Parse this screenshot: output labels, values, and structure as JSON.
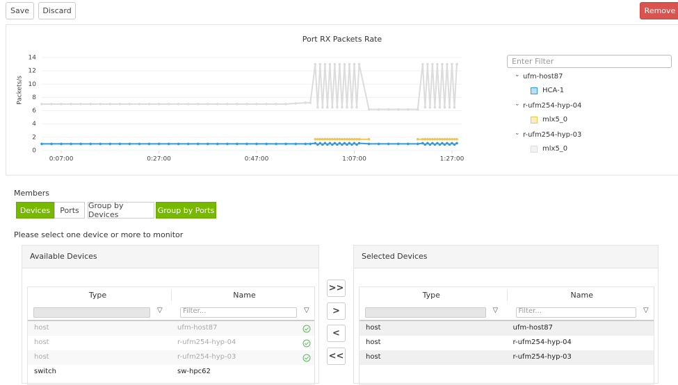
{
  "toolbar": {
    "save": "Save",
    "discard": "Discard",
    "remove": "Remove"
  },
  "chart_data": {
    "type": "line",
    "title": "Port RX Packets Rate",
    "y_label": "Packets/s",
    "x": [
      3,
      5,
      7,
      9,
      11,
      13,
      15,
      17,
      19,
      21,
      23,
      25,
      27,
      29,
      31,
      33,
      35,
      37,
      39,
      41,
      43,
      45,
      47,
      49,
      51,
      53,
      55,
      57,
      58,
      59,
      59.5,
      60,
      60.5,
      61,
      61.5,
      62,
      62.5,
      63,
      63.5,
      64,
      64.5,
      65,
      65.5,
      66,
      66.5,
      67,
      67.5,
      68,
      70,
      72,
      74,
      76,
      78,
      80,
      81,
      81.5,
      82,
      82.5,
      83,
      83.5,
      84,
      84.5,
      85,
      85.5,
      86,
      86.5,
      87,
      87.5,
      88
    ],
    "series": [
      {
        "name": "mlx5_0",
        "color": "#dcdcdc",
        "values": [
          7,
          7,
          7,
          7,
          7,
          7,
          7,
          7,
          7,
          7,
          7,
          7,
          7,
          7,
          7,
          7,
          7,
          7,
          7,
          7,
          7,
          7,
          7,
          7,
          7,
          7,
          7.1,
          7.2,
          7.2,
          13,
          6.5,
          13,
          6.5,
          13,
          6.5,
          13,
          6.5,
          13,
          6.5,
          13,
          6.5,
          13,
          6.5,
          13,
          6.5,
          13,
          6.5,
          13,
          6.2,
          6.2,
          6.2,
          6.2,
          6.2,
          6.2,
          13,
          6.5,
          13,
          6.5,
          13,
          6.5,
          13,
          6.5,
          13,
          6.5,
          13,
          6.5,
          13,
          6.5,
          13
        ]
      },
      {
        "name": "mlx5_0",
        "color": "#f2c744",
        "values": [
          null,
          null,
          null,
          null,
          null,
          null,
          null,
          null,
          null,
          null,
          null,
          null,
          null,
          null,
          null,
          null,
          null,
          null,
          null,
          null,
          null,
          null,
          null,
          null,
          null,
          null,
          null,
          null,
          null,
          1.7,
          1.7,
          1.7,
          1.7,
          1.7,
          1.7,
          1.7,
          1.7,
          1.7,
          1.7,
          1.7,
          1.7,
          1.7,
          1.7,
          1.7,
          1.7,
          1.7,
          1.7,
          1.7,
          1.7,
          null,
          null,
          null,
          null,
          1.7,
          1.7,
          1.7,
          1.7,
          1.7,
          1.7,
          1.7,
          1.7,
          1.7,
          1.7,
          1.7,
          1.7,
          1.7,
          1.7,
          1.7,
          1.7
        ]
      },
      {
        "name": "HCA-1",
        "color": "#2f9be0",
        "values": [
          1,
          1,
          1,
          1,
          1,
          1,
          1,
          1,
          1,
          1,
          1,
          1,
          1,
          1,
          1,
          1,
          1,
          1,
          1,
          1,
          1,
          1,
          1,
          1,
          1,
          1,
          1,
          1,
          1,
          1.1,
          0.9,
          1.1,
          0.9,
          1.1,
          0.9,
          1.1,
          0.9,
          1.1,
          0.9,
          1.1,
          0.9,
          1.1,
          0.9,
          1.1,
          0.9,
          1.1,
          0.9,
          1.1,
          1,
          1,
          1,
          1,
          1,
          1,
          1.1,
          0.9,
          1.1,
          0.9,
          1.1,
          0.9,
          1.1,
          0.9,
          1.1,
          0.9,
          1.1,
          0.9,
          1.1,
          0.9,
          1.1
        ]
      }
    ],
    "xlim": [
      3,
      89
    ],
    "ylim": [
      0,
      14
    ],
    "xticks": [
      {
        "value": 7,
        "label": "0:07:00"
      },
      {
        "value": 27,
        "label": "0:27:00"
      },
      {
        "value": 47,
        "label": "0:47:00"
      },
      {
        "value": 67,
        "label": "1:07:00"
      },
      {
        "value": 87,
        "label": "1:27:00"
      }
    ],
    "yticks": [
      0,
      2,
      4,
      6,
      8,
      10,
      12,
      14
    ],
    "grid": true
  },
  "legend_tree": {
    "filter_placeholder": "Enter Filter",
    "groups": [
      {
        "label": "ufm-host87",
        "series": 2
      },
      {
        "label": "r-ufm254-hyp-04",
        "series": 1
      },
      {
        "label": "r-ufm254-hyp-03",
        "series": 0
      }
    ]
  },
  "members": {
    "title": "Members",
    "tabs": [
      {
        "label": "Devices",
        "active": true
      },
      {
        "label": "Ports",
        "active": false
      },
      {
        "label": "Group by Devices",
        "active": false
      },
      {
        "label": "Group by Ports",
        "active": true
      }
    ],
    "instruction": "Please select one device or more to monitor"
  },
  "available": {
    "title": "Available Devices",
    "columns": [
      "Type",
      "Name"
    ],
    "filter_placeholder": "Filter...",
    "rows": [
      {
        "type": "host",
        "name": "ufm-host87",
        "added": true
      },
      {
        "type": "host",
        "name": "r-ufm254-hyp-04",
        "added": true
      },
      {
        "type": "host",
        "name": "r-ufm254-hyp-03",
        "added": true
      },
      {
        "type": "switch",
        "name": "sw-hpc62",
        "added": false
      }
    ]
  },
  "transfer_buttons": [
    ">>",
    ">",
    "<",
    "<<"
  ],
  "selected": {
    "title": "Selected Devices",
    "columns": [
      "Type",
      "Name"
    ],
    "filter_placeholder": "Filter...",
    "rows": [
      {
        "type": "host",
        "name": "ufm-host87",
        "added": false
      },
      {
        "type": "host",
        "name": "r-ufm254-hyp-04",
        "added": false
      },
      {
        "type": "host",
        "name": "r-ufm254-hyp-03",
        "added": false
      }
    ]
  }
}
